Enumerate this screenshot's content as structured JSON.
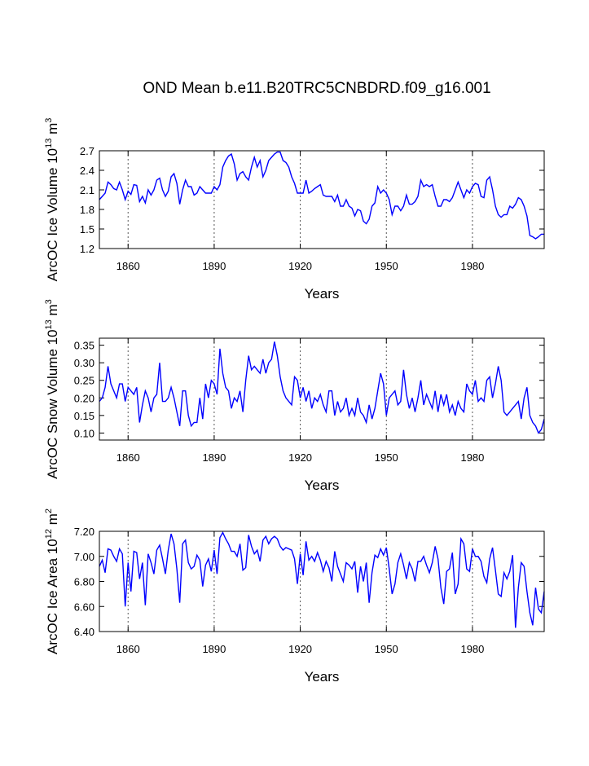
{
  "chart_data": [
    {
      "type": "line",
      "title": "OND Mean b.e11.B20TRC5CNBDRD.f09_g16.001",
      "xlabel": "Years",
      "ylabel": [
        "ArcOC Ice Volume 10",
        "13",
        " m",
        "3"
      ],
      "xlim": [
        1850,
        2005
      ],
      "xticks": [
        1860,
        1890,
        1920,
        1950,
        1980
      ],
      "grid": true,
      "ylim": [
        1.2,
        2.7
      ],
      "yticks": [
        1.2,
        1.5,
        1.8,
        2.1,
        2.4,
        2.7
      ],
      "x": [
        1850,
        1851,
        1852,
        1853,
        1854,
        1855,
        1856,
        1857,
        1858,
        1859,
        1860,
        1861,
        1862,
        1863,
        1864,
        1865,
        1866,
        1867,
        1868,
        1869,
        1870,
        1871,
        1872,
        1873,
        1874,
        1875,
        1876,
        1877,
        1878,
        1879,
        1880,
        1881,
        1882,
        1883,
        1884,
        1885,
        1886,
        1887,
        1888,
        1889,
        1890,
        1891,
        1892,
        1893,
        1894,
        1895,
        1896,
        1897,
        1898,
        1899,
        1900,
        1901,
        1902,
        1903,
        1904,
        1905,
        1906,
        1907,
        1908,
        1909,
        1910,
        1911,
        1912,
        1913,
        1914,
        1915,
        1916,
        1917,
        1918,
        1919,
        1920,
        1921,
        1922,
        1923,
        1924,
        1925,
        1926,
        1927,
        1928,
        1929,
        1930,
        1931,
        1932,
        1933,
        1934,
        1935,
        1936,
        1937,
        1938,
        1939,
        1940,
        1941,
        1942,
        1943,
        1944,
        1945,
        1946,
        1947,
        1948,
        1949,
        1950,
        1951,
        1952,
        1953,
        1954,
        1955,
        1956,
        1957,
        1958,
        1959,
        1960,
        1961,
        1962,
        1963,
        1964,
        1965,
        1966,
        1967,
        1968,
        1969,
        1970,
        1971,
        1972,
        1973,
        1974,
        1975,
        1976,
        1977,
        1978,
        1979,
        1980,
        1981,
        1982,
        1983,
        1984,
        1985,
        1986,
        1987,
        1988,
        1989,
        1990,
        1991,
        1992,
        1993,
        1994,
        1995,
        1996,
        1997,
        1998,
        1999,
        2000,
        2001,
        2002,
        2003,
        2004,
        2005
      ],
      "series": [
        {
          "color": "#0000ff",
          "values": [
            1.95,
            2.0,
            2.05,
            2.22,
            2.18,
            2.12,
            2.1,
            2.22,
            2.1,
            1.95,
            2.08,
            2.03,
            2.18,
            2.17,
            1.92,
            2.0,
            1.9,
            2.1,
            2.02,
            2.1,
            2.25,
            2.28,
            2.1,
            2.0,
            2.08,
            2.3,
            2.35,
            2.2,
            1.88,
            2.1,
            2.25,
            2.15,
            2.15,
            2.02,
            2.05,
            2.15,
            2.1,
            2.05,
            2.05,
            2.05,
            2.15,
            2.1,
            2.18,
            2.45,
            2.55,
            2.62,
            2.65,
            2.5,
            2.25,
            2.35,
            2.38,
            2.3,
            2.25,
            2.45,
            2.6,
            2.45,
            2.55,
            2.3,
            2.4,
            2.55,
            2.6,
            2.65,
            2.68,
            2.68,
            2.55,
            2.52,
            2.45,
            2.3,
            2.2,
            2.05,
            2.05,
            2.05,
            2.25,
            2.05,
            2.08,
            2.12,
            2.15,
            2.18,
            2.02,
            2.0,
            2.0,
            2.0,
            1.92,
            2.02,
            1.85,
            1.85,
            1.95,
            1.85,
            1.82,
            1.7,
            1.8,
            1.78,
            1.62,
            1.58,
            1.65,
            1.85,
            1.9,
            2.15,
            2.05,
            2.1,
            2.05,
            1.95,
            1.72,
            1.85,
            1.85,
            1.78,
            1.85,
            2.02,
            1.88,
            1.88,
            1.92,
            2.0,
            2.25,
            2.15,
            2.18,
            2.15,
            2.18,
            2.0,
            1.85,
            1.85,
            1.95,
            1.95,
            1.92,
            1.98,
            2.1,
            2.22,
            2.1,
            1.98,
            2.1,
            2.05,
            2.15,
            2.2,
            2.18,
            2.0,
            1.98,
            2.25,
            2.3,
            2.1,
            1.85,
            1.72,
            1.68,
            1.72,
            1.72,
            1.85,
            1.82,
            1.88,
            1.98,
            1.95,
            1.85,
            1.7,
            1.4,
            1.38,
            1.35,
            1.38,
            1.42,
            1.42
          ]
        }
      ]
    },
    {
      "type": "line",
      "xlabel": "Years",
      "ylabel": [
        "ArcOC Snow Volume 10",
        "13",
        " m",
        "3"
      ],
      "xlim": [
        1850,
        2005
      ],
      "xticks": [
        1860,
        1890,
        1920,
        1950,
        1980
      ],
      "grid": true,
      "ylim": [
        0.08,
        0.37
      ],
      "yticks": [
        {
          "value": 0.1,
          "label": "0.10"
        },
        0.15,
        {
          "value": 0.2,
          "label": "0.20"
        },
        0.25,
        {
          "value": 0.3,
          "label": "0.30"
        },
        0.35
      ],
      "x": [
        1850,
        1851,
        1852,
        1853,
        1854,
        1855,
        1856,
        1857,
        1858,
        1859,
        1860,
        1861,
        1862,
        1863,
        1864,
        1865,
        1866,
        1867,
        1868,
        1869,
        1870,
        1871,
        1872,
        1873,
        1874,
        1875,
        1876,
        1877,
        1878,
        1879,
        1880,
        1881,
        1882,
        1883,
        1884,
        1885,
        1886,
        1887,
        1888,
        1889,
        1890,
        1891,
        1892,
        1893,
        1894,
        1895,
        1896,
        1897,
        1898,
        1899,
        1900,
        1901,
        1902,
        1903,
        1904,
        1905,
        1906,
        1907,
        1908,
        1909,
        1910,
        1911,
        1912,
        1913,
        1914,
        1915,
        1916,
        1917,
        1918,
        1919,
        1920,
        1921,
        1922,
        1923,
        1924,
        1925,
        1926,
        1927,
        1928,
        1929,
        1930,
        1931,
        1932,
        1933,
        1934,
        1935,
        1936,
        1937,
        1938,
        1939,
        1940,
        1941,
        1942,
        1943,
        1944,
        1945,
        1946,
        1947,
        1948,
        1949,
        1950,
        1951,
        1952,
        1953,
        1954,
        1955,
        1956,
        1957,
        1958,
        1959,
        1960,
        1961,
        1962,
        1963,
        1964,
        1965,
        1966,
        1967,
        1968,
        1969,
        1970,
        1971,
        1972,
        1973,
        1974,
        1975,
        1976,
        1977,
        1978,
        1979,
        1980,
        1981,
        1982,
        1983,
        1984,
        1985,
        1986,
        1987,
        1988,
        1989,
        1990,
        1991,
        1992,
        1993,
        1994,
        1995,
        1996,
        1997,
        1998,
        1999,
        2000,
        2001,
        2002,
        2003,
        2004,
        2005
      ],
      "series": [
        {
          "color": "#0000ff",
          "values": [
            0.19,
            0.2,
            0.23,
            0.29,
            0.24,
            0.22,
            0.2,
            0.24,
            0.24,
            0.19,
            0.23,
            0.22,
            0.21,
            0.23,
            0.13,
            0.18,
            0.22,
            0.2,
            0.16,
            0.2,
            0.21,
            0.3,
            0.19,
            0.19,
            0.2,
            0.23,
            0.2,
            0.16,
            0.12,
            0.22,
            0.22,
            0.15,
            0.12,
            0.13,
            0.13,
            0.2,
            0.14,
            0.24,
            0.2,
            0.25,
            0.24,
            0.21,
            0.34,
            0.27,
            0.23,
            0.22,
            0.17,
            0.2,
            0.19,
            0.22,
            0.16,
            0.25,
            0.32,
            0.28,
            0.29,
            0.28,
            0.27,
            0.31,
            0.27,
            0.3,
            0.31,
            0.36,
            0.32,
            0.26,
            0.22,
            0.2,
            0.19,
            0.18,
            0.26,
            0.25,
            0.2,
            0.23,
            0.19,
            0.22,
            0.17,
            0.2,
            0.19,
            0.21,
            0.18,
            0.16,
            0.22,
            0.22,
            0.15,
            0.19,
            0.16,
            0.17,
            0.2,
            0.15,
            0.17,
            0.15,
            0.2,
            0.16,
            0.15,
            0.13,
            0.18,
            0.14,
            0.17,
            0.22,
            0.27,
            0.24,
            0.15,
            0.2,
            0.21,
            0.22,
            0.18,
            0.19,
            0.28,
            0.21,
            0.17,
            0.2,
            0.16,
            0.2,
            0.25,
            0.18,
            0.21,
            0.19,
            0.17,
            0.22,
            0.16,
            0.21,
            0.18,
            0.21,
            0.16,
            0.18,
            0.15,
            0.19,
            0.17,
            0.16,
            0.24,
            0.22,
            0.21,
            0.25,
            0.19,
            0.2,
            0.19,
            0.25,
            0.26,
            0.2,
            0.24,
            0.29,
            0.25,
            0.16,
            0.15,
            0.16,
            0.17,
            0.18,
            0.19,
            0.14,
            0.2,
            0.23,
            0.15,
            0.13,
            0.12,
            0.1,
            0.11,
            0.14
          ]
        }
      ]
    },
    {
      "type": "line",
      "xlabel": "Years",
      "ylabel": [
        "ArcOC Ice Area 10",
        "12",
        " m",
        "2"
      ],
      "xlim": [
        1850,
        2005
      ],
      "xticks": [
        1860,
        1890,
        1920,
        1950,
        1980
      ],
      "grid": true,
      "ylim": [
        6.4,
        7.2
      ],
      "yticks": [
        {
          "value": 6.4,
          "label": "6.40"
        },
        {
          "value": 6.6,
          "label": "6.60"
        },
        {
          "value": 6.8,
          "label": "6.80"
        },
        {
          "value": 7.0,
          "label": "7.00"
        },
        {
          "value": 7.2,
          "label": "7.20"
        }
      ],
      "x": [
        1850,
        1851,
        1852,
        1853,
        1854,
        1855,
        1856,
        1857,
        1858,
        1859,
        1860,
        1861,
        1862,
        1863,
        1864,
        1865,
        1866,
        1867,
        1868,
        1869,
        1870,
        1871,
        1872,
        1873,
        1874,
        1875,
        1876,
        1877,
        1878,
        1879,
        1880,
        1881,
        1882,
        1883,
        1884,
        1885,
        1886,
        1887,
        1888,
        1889,
        1890,
        1891,
        1892,
        1893,
        1894,
        1895,
        1896,
        1897,
        1898,
        1899,
        1900,
        1901,
        1902,
        1903,
        1904,
        1905,
        1906,
        1907,
        1908,
        1909,
        1910,
        1911,
        1912,
        1913,
        1914,
        1915,
        1916,
        1917,
        1918,
        1919,
        1920,
        1921,
        1922,
        1923,
        1924,
        1925,
        1926,
        1927,
        1928,
        1929,
        1930,
        1931,
        1932,
        1933,
        1934,
        1935,
        1936,
        1937,
        1938,
        1939,
        1940,
        1941,
        1942,
        1943,
        1944,
        1945,
        1946,
        1947,
        1948,
        1949,
        1950,
        1951,
        1952,
        1953,
        1954,
        1955,
        1956,
        1957,
        1958,
        1959,
        1960,
        1961,
        1962,
        1963,
        1964,
        1965,
        1966,
        1967,
        1968,
        1969,
        1970,
        1971,
        1972,
        1973,
        1974,
        1975,
        1976,
        1977,
        1978,
        1979,
        1980,
        1981,
        1982,
        1983,
        1984,
        1985,
        1986,
        1987,
        1988,
        1989,
        1990,
        1991,
        1992,
        1993,
        1994,
        1995,
        1996,
        1997,
        1998,
        1999,
        2000,
        2001,
        2002,
        2003,
        2004,
        2005
      ],
      "series": [
        {
          "color": "#0000ff",
          "values": [
            6.92,
            6.97,
            6.87,
            7.06,
            7.05,
            7.0,
            6.96,
            7.06,
            7.02,
            6.6,
            6.95,
            6.72,
            7.04,
            7.03,
            6.82,
            6.95,
            6.61,
            7.02,
            6.95,
            6.86,
            7.05,
            7.09,
            6.98,
            6.86,
            7.05,
            7.18,
            7.1,
            6.9,
            6.63,
            7.1,
            7.13,
            6.95,
            6.9,
            6.92,
            7.01,
            6.97,
            6.76,
            6.93,
            6.98,
            6.88,
            7.05,
            6.86,
            7.15,
            7.19,
            7.14,
            7.1,
            7.04,
            7.04,
            7.0,
            7.1,
            6.89,
            6.91,
            7.17,
            7.08,
            7.02,
            7.05,
            6.96,
            7.13,
            7.16,
            7.1,
            7.14,
            7.16,
            7.14,
            7.08,
            7.05,
            7.07,
            7.06,
            7.05,
            6.98,
            6.78,
            7.02,
            6.85,
            7.12,
            6.97,
            7.0,
            6.96,
            7.03,
            6.97,
            6.88,
            6.96,
            6.91,
            6.8,
            7.04,
            6.92,
            6.86,
            6.8,
            6.95,
            6.93,
            6.9,
            6.96,
            6.71,
            6.92,
            6.8,
            6.95,
            6.63,
            6.87,
            7.01,
            6.99,
            7.06,
            7.01,
            7.07,
            6.9,
            6.7,
            6.78,
            6.95,
            7.02,
            6.93,
            6.82,
            6.95,
            6.9,
            6.8,
            6.96,
            6.96,
            7.0,
            6.93,
            6.87,
            6.95,
            7.08,
            6.98,
            6.75,
            6.62,
            6.88,
            6.9,
            7.03,
            6.7,
            6.78,
            7.14,
            7.1,
            6.9,
            6.88,
            7.06,
            7.0,
            7.0,
            6.96,
            6.84,
            6.79,
            6.98,
            7.07,
            6.89,
            6.7,
            6.68,
            6.87,
            6.82,
            6.88,
            7.01,
            6.43,
            6.75,
            6.95,
            6.92,
            6.72,
            6.55,
            6.45,
            6.75,
            6.58,
            6.55,
            6.72
          ]
        }
      ]
    }
  ]
}
